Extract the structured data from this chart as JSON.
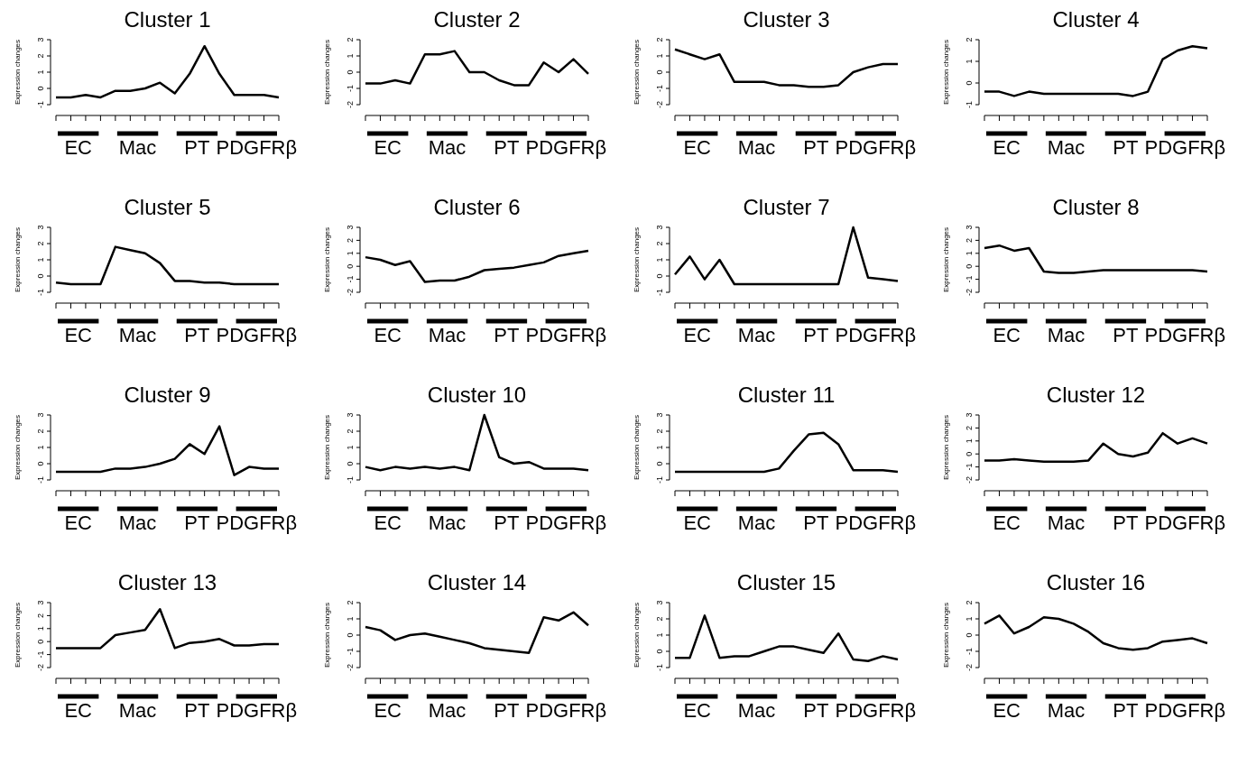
{
  "chart_data": [
    {
      "type": "line",
      "title": "Cluster 1",
      "ylabel": "Expression changes",
      "categories": [
        null,
        null,
        null,
        null,
        null,
        null,
        null,
        null,
        null,
        null,
        null,
        null,
        null,
        null,
        null,
        null
      ],
      "annotations": [
        "EC",
        "Mac",
        "PT",
        "PDGFRβ"
      ],
      "ylim": [
        -1,
        3
      ],
      "yticks": [
        -1,
        0,
        1,
        2,
        3
      ],
      "grid": false,
      "series": [
        {
          "color": "#000000",
          "values": [
            -0.55,
            -0.55,
            -0.4,
            -0.55,
            -0.15,
            -0.15,
            0,
            0.35,
            -0.3,
            0.9,
            2.6,
            0.9,
            -0.4,
            -0.4,
            -0.4,
            -0.55
          ]
        }
      ]
    },
    {
      "type": "line",
      "title": "Cluster 2",
      "ylabel": "Expression changes",
      "categories": [
        null,
        null,
        null,
        null,
        null,
        null,
        null,
        null,
        null,
        null,
        null,
        null,
        null,
        null,
        null,
        null
      ],
      "annotations": [
        "EC",
        "Mac",
        "PT",
        "PDGFRβ"
      ],
      "ylim": [
        -2,
        2
      ],
      "yticks": [
        -2,
        -1,
        0,
        1,
        2
      ],
      "grid": false,
      "series": [
        {
          "color": "#000000",
          "values": [
            -0.7,
            -0.7,
            -0.5,
            -0.7,
            1.1,
            1.1,
            1.3,
            0,
            0,
            -0.5,
            -0.8,
            -0.8,
            0.6,
            0,
            0.8,
            -0.1
          ]
        }
      ]
    },
    {
      "type": "line",
      "title": "Cluster 3",
      "ylabel": "Expression changes",
      "categories": [
        null,
        null,
        null,
        null,
        null,
        null,
        null,
        null,
        null,
        null,
        null,
        null,
        null,
        null,
        null,
        null
      ],
      "annotations": [
        "EC",
        "Mac",
        "PT",
        "PDGFRβ"
      ],
      "ylim": [
        -2,
        2
      ],
      "yticks": [
        -2,
        -1,
        0,
        1,
        2
      ],
      "grid": false,
      "series": [
        {
          "color": "#000000",
          "values": [
            1.4,
            1.1,
            0.8,
            1.1,
            -0.6,
            -0.6,
            -0.6,
            -0.8,
            -0.8,
            -0.9,
            -0.9,
            -0.8,
            0,
            0.3,
            0.5,
            0.5
          ]
        }
      ]
    },
    {
      "type": "line",
      "title": "Cluster 4",
      "ylabel": "Expression changes",
      "categories": [
        null,
        null,
        null,
        null,
        null,
        null,
        null,
        null,
        null,
        null,
        null,
        null,
        null,
        null,
        null,
        null
      ],
      "annotations": [
        "EC",
        "Mac",
        "PT",
        "PDGFRβ"
      ],
      "ylim": [
        -1,
        2
      ],
      "yticks": [
        -1,
        0,
        1,
        2
      ],
      "grid": false,
      "series": [
        {
          "color": "#000000",
          "values": [
            -0.4,
            -0.4,
            -0.6,
            -0.4,
            -0.5,
            -0.5,
            -0.5,
            -0.5,
            -0.5,
            -0.5,
            -0.6,
            -0.4,
            1.1,
            1.5,
            1.7,
            1.6
          ]
        }
      ]
    },
    {
      "type": "line",
      "title": "Cluster 5",
      "ylabel": "Expression changes",
      "categories": [
        null,
        null,
        null,
        null,
        null,
        null,
        null,
        null,
        null,
        null,
        null,
        null,
        null,
        null,
        null,
        null
      ],
      "annotations": [
        "EC",
        "Mac",
        "PT",
        "PDGFRβ"
      ],
      "ylim": [
        -1,
        3
      ],
      "yticks": [
        -1,
        0,
        1,
        2,
        3
      ],
      "grid": false,
      "series": [
        {
          "color": "#000000",
          "values": [
            -0.4,
            -0.5,
            -0.5,
            -0.5,
            1.8,
            1.6,
            1.4,
            0.8,
            -0.3,
            -0.3,
            -0.4,
            -0.4,
            -0.5,
            -0.5,
            -0.5,
            -0.5
          ]
        }
      ]
    },
    {
      "type": "line",
      "title": "Cluster 6",
      "ylabel": "Expression changes",
      "categories": [
        null,
        null,
        null,
        null,
        null,
        null,
        null,
        null,
        null,
        null,
        null,
        null,
        null,
        null,
        null,
        null
      ],
      "annotations": [
        "EC",
        "Mac",
        "PT",
        "PDGFRβ"
      ],
      "ylim": [
        -2,
        3
      ],
      "yticks": [
        -2,
        -1,
        0,
        1,
        2,
        3
      ],
      "grid": false,
      "series": [
        {
          "color": "#000000",
          "values": [
            0.7,
            0.5,
            0.1,
            0.4,
            -1.2,
            -1.1,
            -1.1,
            -0.8,
            -0.3,
            -0.2,
            -0.1,
            0.1,
            0.3,
            0.8,
            1.0,
            1.2
          ]
        }
      ]
    },
    {
      "type": "line",
      "title": "Cluster 7",
      "ylabel": "Expression changes",
      "categories": [
        null,
        null,
        null,
        null,
        null,
        null,
        null,
        null,
        null,
        null,
        null,
        null,
        null,
        null,
        null,
        null
      ],
      "annotations": [
        "EC",
        "Mac",
        "PT",
        "PDGFRβ"
      ],
      "ylim": [
        -1,
        3
      ],
      "yticks": [
        -1,
        0,
        1,
        2,
        3
      ],
      "grid": false,
      "series": [
        {
          "color": "#000000",
          "values": [
            0.1,
            1.2,
            -0.2,
            1.0,
            -0.5,
            -0.5,
            -0.5,
            -0.5,
            -0.5,
            -0.5,
            -0.5,
            -0.5,
            3.0,
            -0.1,
            -0.2,
            -0.3
          ]
        }
      ]
    },
    {
      "type": "line",
      "title": "Cluster 8",
      "ylabel": "Expression changes",
      "categories": [
        null,
        null,
        null,
        null,
        null,
        null,
        null,
        null,
        null,
        null,
        null,
        null,
        null,
        null,
        null,
        null
      ],
      "annotations": [
        "EC",
        "Mac",
        "PT",
        "PDGFRβ"
      ],
      "ylim": [
        -2,
        3
      ],
      "yticks": [
        -2,
        -1,
        0,
        1,
        2,
        3
      ],
      "grid": false,
      "series": [
        {
          "color": "#000000",
          "values": [
            1.4,
            1.6,
            1.2,
            1.4,
            -0.4,
            -0.5,
            -0.5,
            -0.4,
            -0.3,
            -0.3,
            -0.3,
            -0.3,
            -0.3,
            -0.3,
            -0.3,
            -0.4
          ]
        }
      ]
    },
    {
      "type": "line",
      "title": "Cluster 9",
      "ylabel": "Expression changes",
      "categories": [
        null,
        null,
        null,
        null,
        null,
        null,
        null,
        null,
        null,
        null,
        null,
        null,
        null,
        null,
        null,
        null
      ],
      "annotations": [
        "EC",
        "Mac",
        "PT",
        "PDGFRβ"
      ],
      "ylim": [
        -1,
        3
      ],
      "yticks": [
        -1,
        0,
        1,
        2,
        3
      ],
      "grid": false,
      "series": [
        {
          "color": "#000000",
          "values": [
            -0.5,
            -0.5,
            -0.5,
            -0.5,
            -0.3,
            -0.3,
            -0.2,
            0,
            0.3,
            1.2,
            0.6,
            2.3,
            -0.7,
            -0.2,
            -0.3,
            -0.3
          ]
        }
      ]
    },
    {
      "type": "line",
      "title": "Cluster 10",
      "ylabel": "Expression changes",
      "categories": [
        null,
        null,
        null,
        null,
        null,
        null,
        null,
        null,
        null,
        null,
        null,
        null,
        null,
        null,
        null,
        null
      ],
      "annotations": [
        "EC",
        "Mac",
        "PT",
        "PDGFRβ"
      ],
      "ylim": [
        -1,
        3
      ],
      "yticks": [
        -1,
        0,
        1,
        2,
        3
      ],
      "grid": false,
      "series": [
        {
          "color": "#000000",
          "values": [
            -0.2,
            -0.4,
            -0.2,
            -0.3,
            -0.2,
            -0.3,
            -0.2,
            -0.4,
            3.0,
            0.4,
            0,
            0.1,
            -0.3,
            -0.3,
            -0.3,
            -0.4
          ]
        }
      ]
    },
    {
      "type": "line",
      "title": "Cluster 11",
      "ylabel": "Expression changes",
      "categories": [
        null,
        null,
        null,
        null,
        null,
        null,
        null,
        null,
        null,
        null,
        null,
        null,
        null,
        null,
        null,
        null
      ],
      "annotations": [
        "EC",
        "Mac",
        "PT",
        "PDGFRβ"
      ],
      "ylim": [
        -1,
        3
      ],
      "yticks": [
        -1,
        0,
        1,
        2,
        3
      ],
      "grid": false,
      "series": [
        {
          "color": "#000000",
          "values": [
            -0.5,
            -0.5,
            -0.5,
            -0.5,
            -0.5,
            -0.5,
            -0.5,
            -0.3,
            0.8,
            1.8,
            1.9,
            1.2,
            -0.4,
            -0.4,
            -0.4,
            -0.5
          ]
        }
      ]
    },
    {
      "type": "line",
      "title": "Cluster 12",
      "ylabel": "Expression changes",
      "categories": [
        null,
        null,
        null,
        null,
        null,
        null,
        null,
        null,
        null,
        null,
        null,
        null,
        null,
        null,
        null,
        null
      ],
      "annotations": [
        "EC",
        "Mac",
        "PT",
        "PDGFRβ"
      ],
      "ylim": [
        -2,
        3
      ],
      "yticks": [
        -2,
        -1,
        0,
        1,
        2,
        3
      ],
      "grid": false,
      "series": [
        {
          "color": "#000000",
          "values": [
            -0.5,
            -0.5,
            -0.4,
            -0.5,
            -0.6,
            -0.6,
            -0.6,
            -0.5,
            0.8,
            0,
            -0.2,
            0.1,
            1.6,
            0.8,
            1.2,
            0.8
          ]
        }
      ]
    },
    {
      "type": "line",
      "title": "Cluster 13",
      "ylabel": "Expression changes",
      "categories": [
        null,
        null,
        null,
        null,
        null,
        null,
        null,
        null,
        null,
        null,
        null,
        null,
        null,
        null,
        null,
        null
      ],
      "annotations": [
        "EC",
        "Mac",
        "PT",
        "PDGFRβ"
      ],
      "ylim": [
        -2,
        3
      ],
      "yticks": [
        -2,
        -1,
        0,
        1,
        2,
        3
      ],
      "grid": false,
      "series": [
        {
          "color": "#000000",
          "values": [
            -0.5,
            -0.5,
            -0.5,
            -0.5,
            0.5,
            0.7,
            0.9,
            2.5,
            -0.5,
            -0.1,
            0,
            0.2,
            -0.3,
            -0.3,
            -0.2,
            -0.2
          ]
        }
      ]
    },
    {
      "type": "line",
      "title": "Cluster 14",
      "ylabel": "Expression changes",
      "categories": [
        null,
        null,
        null,
        null,
        null,
        null,
        null,
        null,
        null,
        null,
        null,
        null,
        null,
        null,
        null,
        null
      ],
      "annotations": [
        "EC",
        "Mac",
        "PT",
        "PDGFRβ"
      ],
      "ylim": [
        -2,
        2
      ],
      "yticks": [
        -2,
        -1,
        0,
        1,
        2
      ],
      "grid": false,
      "series": [
        {
          "color": "#000000",
          "values": [
            0.5,
            0.3,
            -0.3,
            0,
            0.1,
            -0.1,
            -0.3,
            -0.5,
            -0.8,
            -0.9,
            -1.0,
            -1.1,
            1.1,
            0.9,
            1.4,
            0.6
          ]
        }
      ]
    },
    {
      "type": "line",
      "title": "Cluster 15",
      "ylabel": "Expression changes",
      "categories": [
        null,
        null,
        null,
        null,
        null,
        null,
        null,
        null,
        null,
        null,
        null,
        null,
        null,
        null,
        null,
        null
      ],
      "annotations": [
        "EC",
        "Mac",
        "PT",
        "PDGFRβ"
      ],
      "ylim": [
        -1,
        3
      ],
      "yticks": [
        -1,
        0,
        1,
        2,
        3
      ],
      "grid": false,
      "series": [
        {
          "color": "#000000",
          "values": [
            -0.4,
            -0.4,
            2.2,
            -0.4,
            -0.3,
            -0.3,
            0,
            0.3,
            0.3,
            0.1,
            -0.1,
            1.1,
            -0.5,
            -0.6,
            -0.3,
            -0.5
          ]
        }
      ]
    },
    {
      "type": "line",
      "title": "Cluster 16",
      "ylabel": "Expression changes",
      "categories": [
        null,
        null,
        null,
        null,
        null,
        null,
        null,
        null,
        null,
        null,
        null,
        null,
        null,
        null,
        null,
        null
      ],
      "annotations": [
        "EC",
        "Mac",
        "PT",
        "PDGFRβ"
      ],
      "ylim": [
        -2,
        2
      ],
      "yticks": [
        -2,
        -1,
        0,
        1,
        2
      ],
      "grid": false,
      "series": [
        {
          "color": "#000000",
          "values": [
            0.7,
            1.2,
            0.1,
            0.5,
            1.1,
            1.0,
            0.7,
            0.2,
            -0.5,
            -0.8,
            -0.9,
            -0.8,
            -0.4,
            -0.3,
            -0.2,
            -0.5
          ]
        }
      ]
    }
  ]
}
